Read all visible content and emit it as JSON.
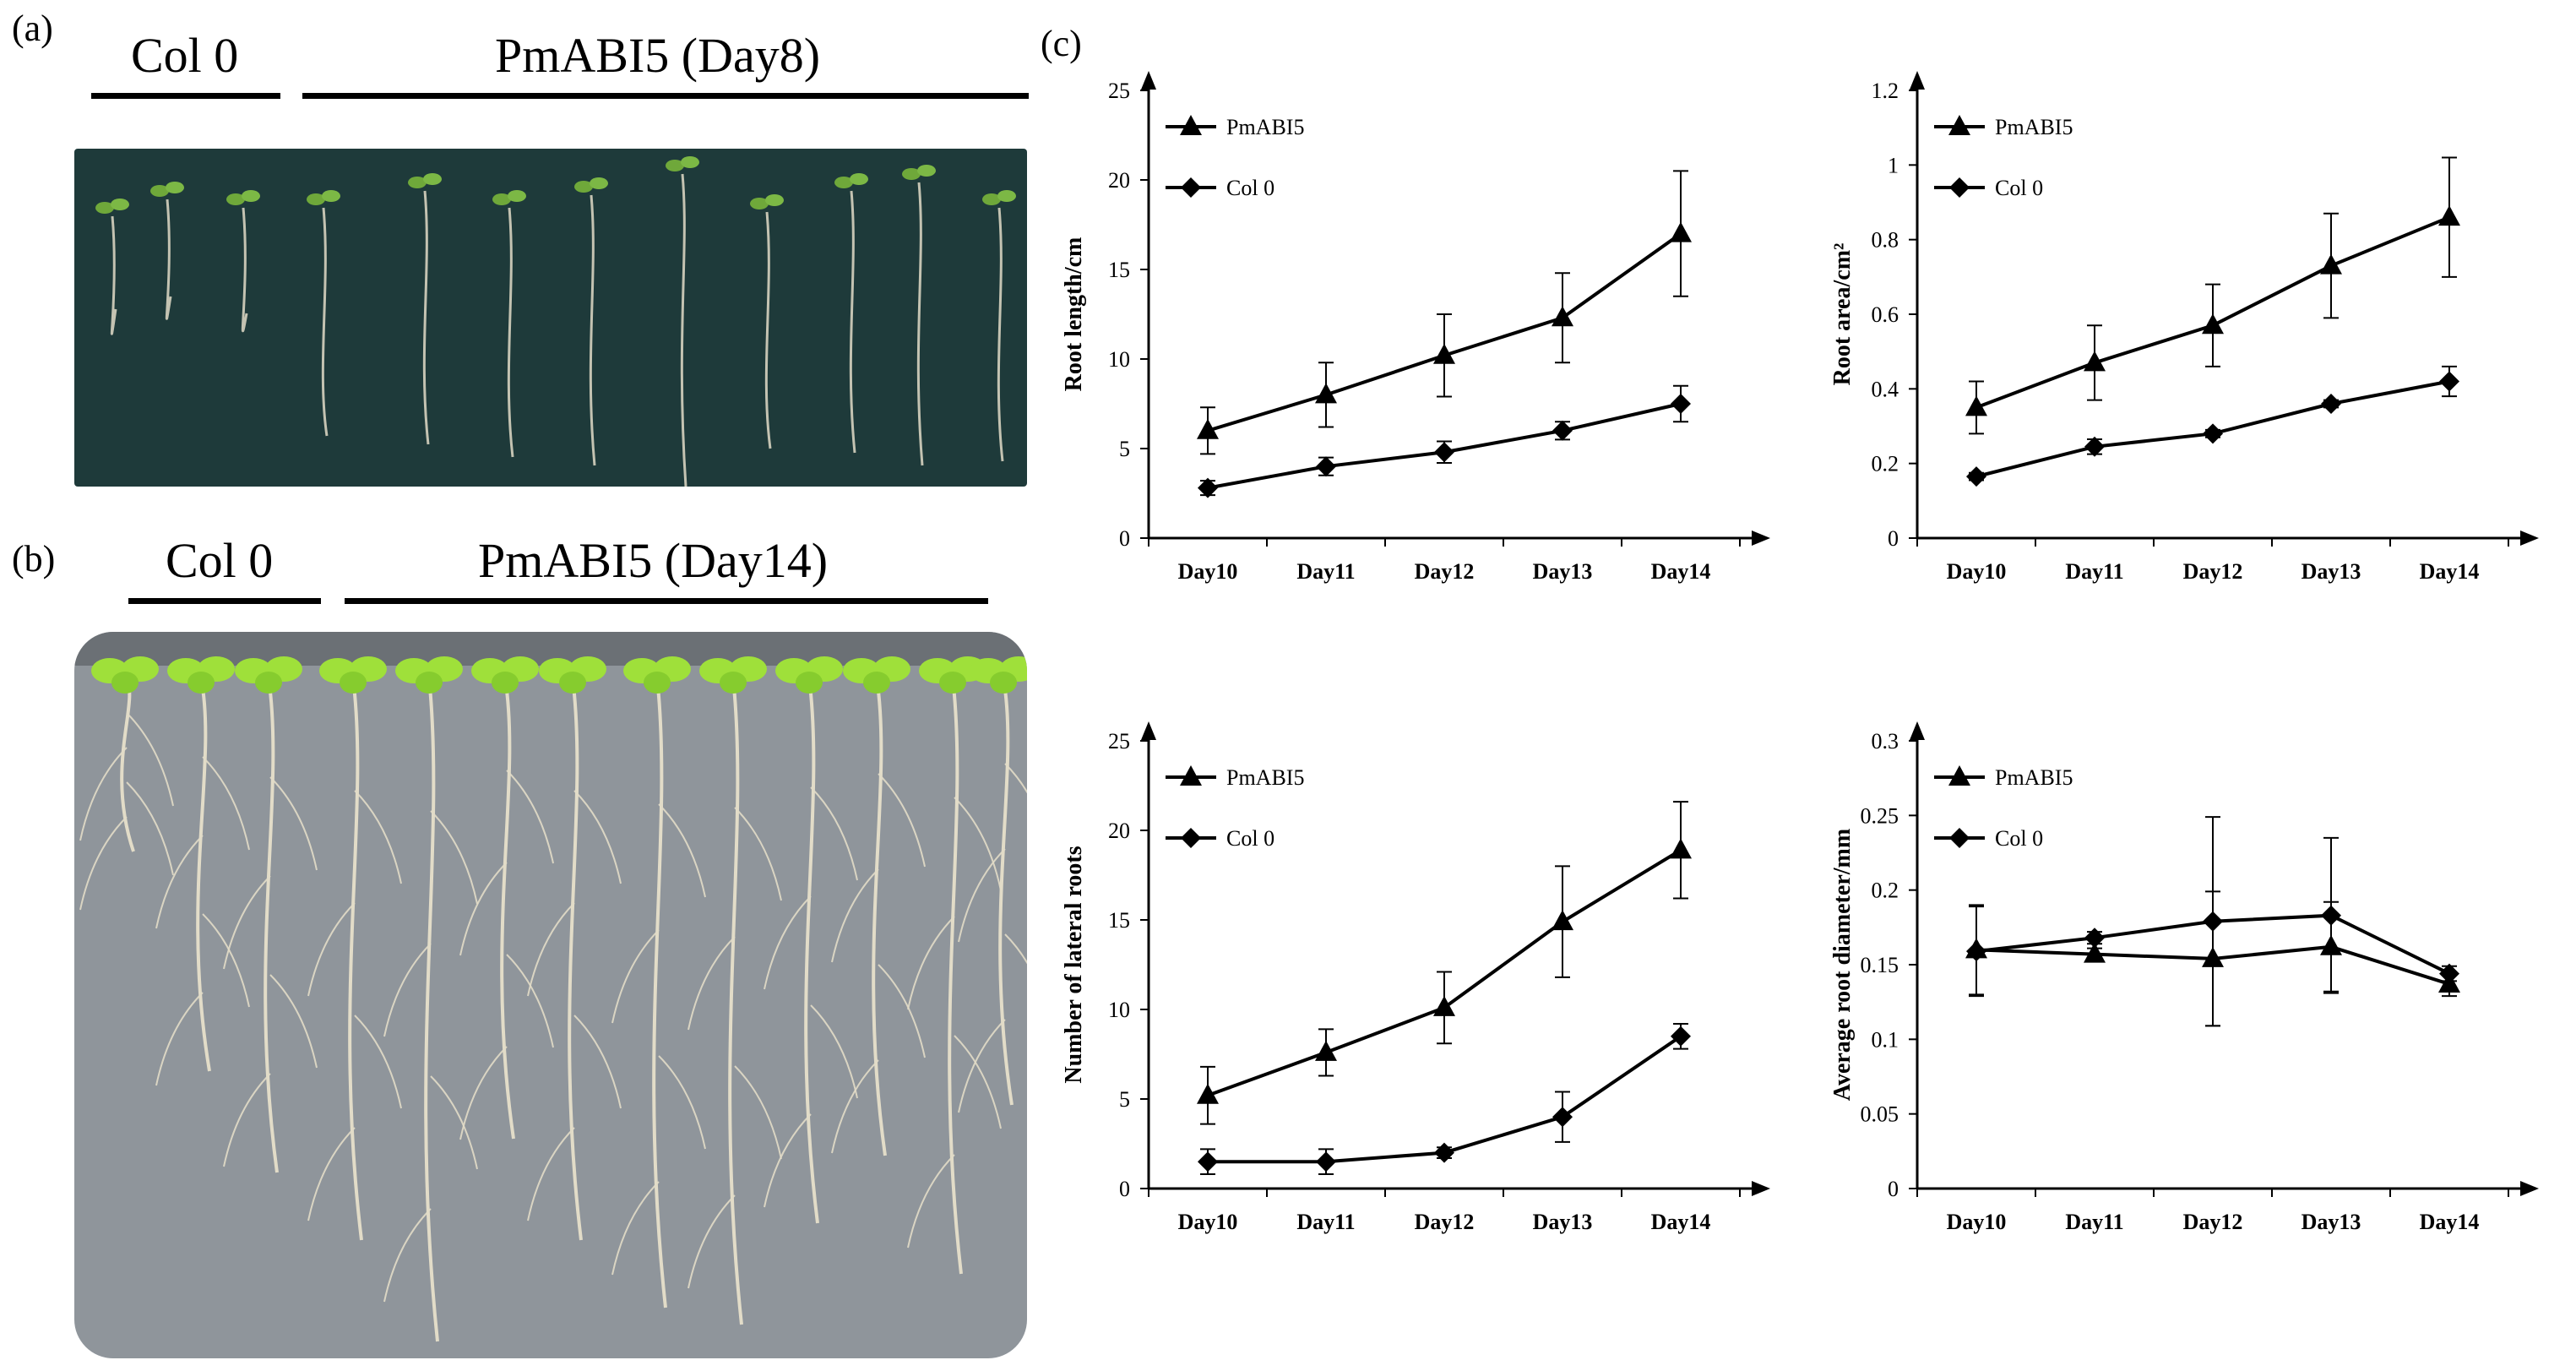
{
  "panels": {
    "a": {
      "label": "(a)",
      "group_left": "Col 0",
      "group_right": "PmABI5 (Day8)"
    },
    "b": {
      "label": "(b)",
      "group_left": "Col 0",
      "group_right": "PmABI5 (Day14)"
    },
    "c": {
      "label": "(c)"
    }
  },
  "colors": {
    "line": "#000000",
    "plate_a": "#1e3a3a",
    "plate_b": "#8f959b",
    "leaf": "#9fe03a",
    "root": "#e2dcc8"
  },
  "chart_data": [
    {
      "id": "root-length",
      "type": "line",
      "ylabel": "Root length/cm",
      "categories": [
        "Day10",
        "Day11",
        "Day12",
        "Day13",
        "Day14"
      ],
      "ylim": [
        0,
        25
      ],
      "yticks": [
        0,
        5,
        10,
        15,
        20,
        25
      ],
      "ytick_labels": [
        "0",
        "5",
        "10",
        "15",
        "20",
        "25"
      ],
      "legend": [
        "PmABI5",
        "Col 0"
      ],
      "series": [
        {
          "name": "PmABI5",
          "marker": "triangle",
          "values": [
            6.0,
            8.0,
            10.2,
            12.3,
            17.0
          ],
          "errors": [
            1.3,
            1.8,
            2.3,
            2.5,
            3.5
          ]
        },
        {
          "name": "Col 0",
          "marker": "diamond",
          "values": [
            2.8,
            4.0,
            4.8,
            6.0,
            7.5
          ],
          "errors": [
            0.4,
            0.5,
            0.6,
            0.5,
            1.0
          ]
        }
      ]
    },
    {
      "id": "root-area",
      "type": "line",
      "ylabel": "Root area/cm²",
      "categories": [
        "Day10",
        "Day11",
        "Day12",
        "Day13",
        "Day14"
      ],
      "ylim": [
        0,
        1.2
      ],
      "yticks": [
        0,
        0.2,
        0.4,
        0.6,
        0.8,
        1.0,
        1.2
      ],
      "ytick_labels": [
        "0",
        "0.2",
        "0.4",
        "0.6",
        "0.8",
        "1",
        "1.2"
      ],
      "legend": [
        "PmABI5",
        "Col 0"
      ],
      "series": [
        {
          "name": "PmABI5",
          "marker": "triangle",
          "values": [
            0.35,
            0.47,
            0.57,
            0.73,
            0.86
          ],
          "errors": [
            0.07,
            0.1,
            0.11,
            0.14,
            0.16
          ]
        },
        {
          "name": "Col 0",
          "marker": "diamond",
          "values": [
            0.165,
            0.245,
            0.28,
            0.36,
            0.42
          ],
          "errors": [
            0.01,
            0.02,
            0.01,
            0.01,
            0.04
          ]
        }
      ]
    },
    {
      "id": "lateral-roots",
      "type": "line",
      "ylabel": "Number of lateral roots",
      "categories": [
        "Day10",
        "Day11",
        "Day12",
        "Day13",
        "Day14"
      ],
      "ylim": [
        0,
        25
      ],
      "yticks": [
        0,
        5,
        10,
        15,
        20,
        25
      ],
      "ytick_labels": [
        "0",
        "5",
        "10",
        "15",
        "20",
        "25"
      ],
      "legend": [
        "PmABI5",
        "Col 0"
      ],
      "series": [
        {
          "name": "PmABI5",
          "marker": "triangle",
          "values": [
            5.2,
            7.6,
            10.1,
            14.9,
            18.9
          ],
          "errors": [
            1.6,
            1.3,
            2.0,
            3.1,
            2.7
          ]
        },
        {
          "name": "Col 0",
          "marker": "diamond",
          "values": [
            1.5,
            1.5,
            2.0,
            4.0,
            8.5
          ],
          "errors": [
            0.7,
            0.7,
            0.3,
            1.4,
            0.7
          ]
        }
      ]
    },
    {
      "id": "root-diameter",
      "type": "line",
      "ylabel": "Average root diameter/mm",
      "categories": [
        "Day10",
        "Day11",
        "Day12",
        "Day13",
        "Day14"
      ],
      "ylim": [
        0,
        0.3
      ],
      "yticks": [
        0,
        0.05,
        0.1,
        0.15,
        0.2,
        0.25,
        0.3
      ],
      "ytick_labels": [
        "0",
        "0.05",
        "0.1",
        "0.15",
        "0.2",
        "0.25",
        "0.3"
      ],
      "legend": [
        "PmABI5",
        "Col 0"
      ],
      "series": [
        {
          "name": "PmABI5",
          "marker": "triangle",
          "values": [
            0.16,
            0.157,
            0.154,
            0.162,
            0.137
          ],
          "errors": [
            0.03,
            0.004,
            0.045,
            0.03,
            0.008
          ]
        },
        {
          "name": "Col 0",
          "marker": "diamond",
          "values": [
            0.159,
            0.168,
            0.179,
            0.183,
            0.144
          ],
          "errors": [
            0.03,
            0.004,
            0.07,
            0.052,
            0.005
          ]
        }
      ]
    }
  ]
}
